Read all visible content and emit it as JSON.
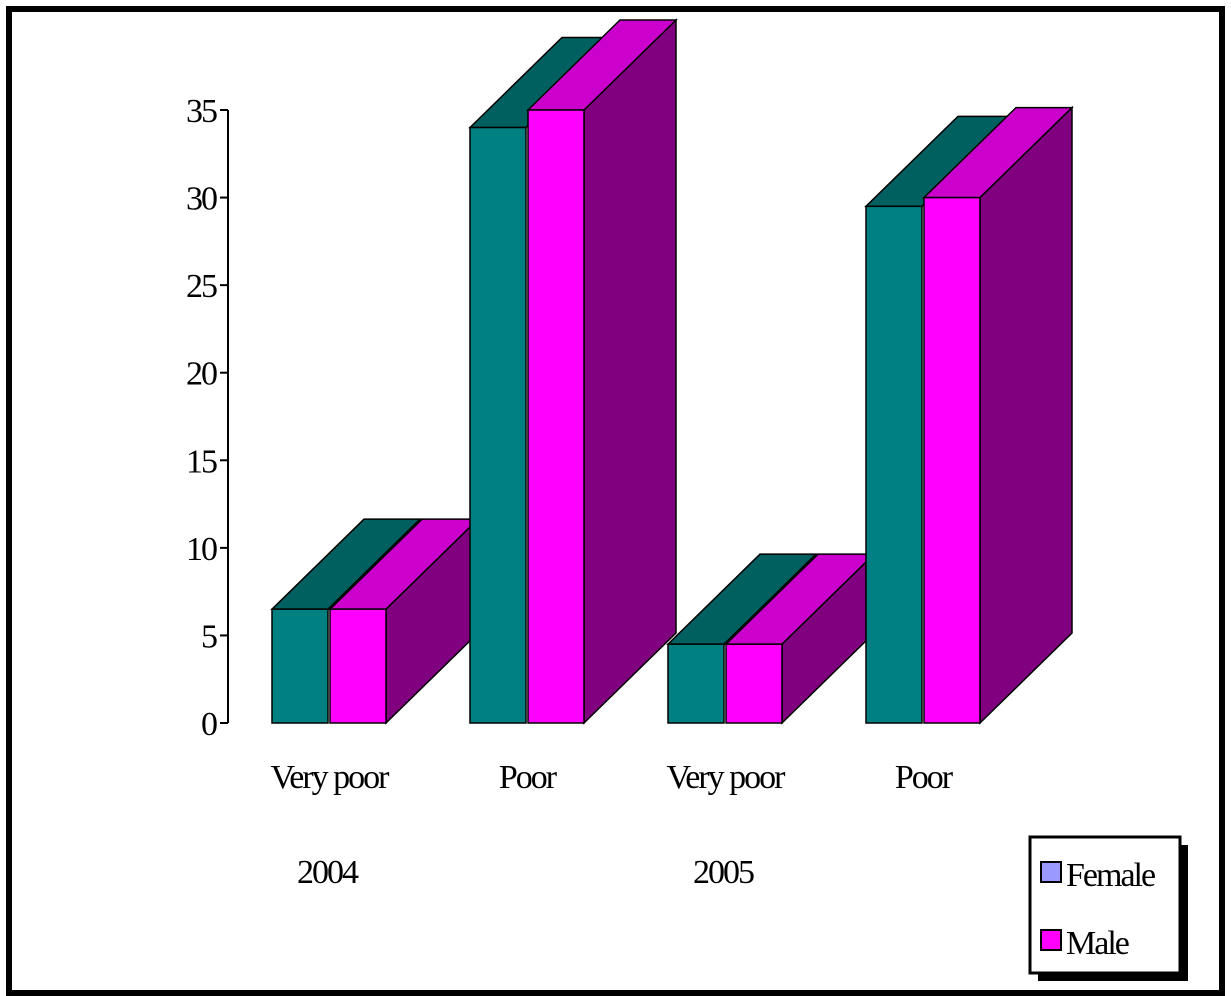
{
  "chart_data": {
    "type": "bar",
    "title": "",
    "xlabel": "",
    "ylabel": "",
    "ylim": [
      0,
      35
    ],
    "yticks": [
      "0",
      "5",
      "10",
      "15",
      "20",
      "25",
      "30",
      "35"
    ],
    "categories": [
      "Very poor",
      "Poor",
      "Very poor",
      "Poor"
    ],
    "groups": [
      {
        "label": "2004",
        "categories": [
          0,
          1
        ]
      },
      {
        "label": "2005",
        "categories": [
          2,
          3
        ]
      }
    ],
    "series": [
      {
        "name": "Female",
        "values": [
          6.5,
          34,
          4.5,
          29.5
        ]
      },
      {
        "name": "Male",
        "values": [
          6.5,
          35,
          4.5,
          30
        ]
      }
    ],
    "colors": {
      "female_front": "#008080",
      "female_top": "#006060",
      "male_front": "#ff00ff",
      "male_top": "#cc00cc",
      "side": "#800080",
      "legend_female": "#9999ff",
      "legend_male": "#ff00ff"
    },
    "grid": false,
    "legend_position": "bottom-right",
    "style": "3d"
  }
}
